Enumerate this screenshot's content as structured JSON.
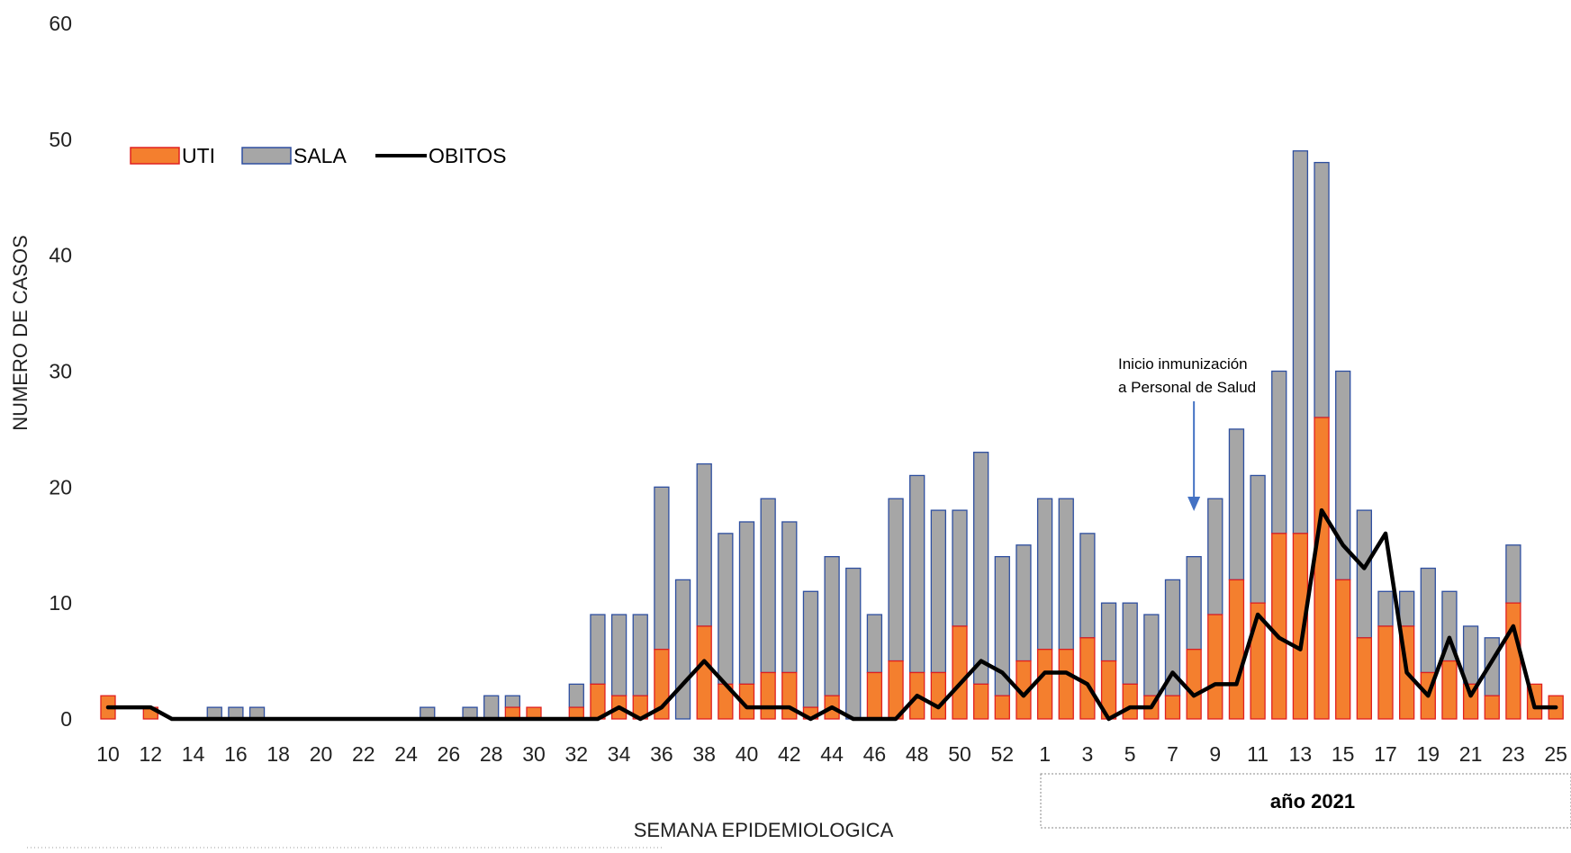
{
  "chart_data": {
    "type": "bar",
    "stacked": true,
    "ylabel": "NUMERO DE CASOS",
    "xlabel": "SEMANA EPIDEMIOLOGICA",
    "ylim": [
      0,
      60
    ],
    "y_ticks": [
      0,
      10,
      20,
      30,
      40,
      50,
      60
    ],
    "grid": false,
    "legend_position": "top-left",
    "year_box_label": "año 2021",
    "annotation": {
      "lines": [
        "Inicio inmunización",
        "a Personal de Salud"
      ],
      "target_week_index": 51
    },
    "weeks": [
      "10",
      "11",
      "12",
      "13",
      "14",
      "15",
      "16",
      "17",
      "18",
      "19",
      "20",
      "21",
      "22",
      "23",
      "24",
      "25",
      "26",
      "27",
      "28",
      "29",
      "30",
      "31",
      "32",
      "33",
      "34",
      "35",
      "36",
      "37",
      "38",
      "39",
      "40",
      "41",
      "42",
      "43",
      "44",
      "45",
      "46",
      "47",
      "48",
      "49",
      "50",
      "51",
      "52",
      "53",
      "1",
      "2",
      "3",
      "4",
      "5",
      "6",
      "7",
      "8",
      "9",
      "10",
      "11",
      "12",
      "13",
      "14",
      "15",
      "16",
      "17",
      "18",
      "19",
      "20",
      "21",
      "22",
      "23",
      "24",
      "25"
    ],
    "tick_labels": [
      "10",
      "12",
      "14",
      "16",
      "18",
      "20",
      "22",
      "24",
      "26",
      "28",
      "30",
      "32",
      "34",
      "36",
      "38",
      "40",
      "42",
      "44",
      "46",
      "48",
      "50",
      "52",
      "1",
      "3",
      "5",
      "7",
      "9",
      "11",
      "13",
      "15",
      "17",
      "19",
      "21",
      "23",
      "25"
    ],
    "tick_label_indices": [
      0,
      2,
      4,
      6,
      8,
      10,
      12,
      14,
      16,
      18,
      20,
      22,
      24,
      26,
      28,
      30,
      32,
      34,
      36,
      38,
      40,
      42,
      44,
      46,
      48,
      50,
      52,
      54,
      56,
      58,
      60,
      62,
      64,
      66,
      68
    ],
    "year_start_index": 44,
    "series": [
      {
        "name": "UTI",
        "kind": "bar",
        "color": "#F47F2E",
        "edge": "#E02020",
        "values": [
          2,
          0,
          1,
          0,
          0,
          0,
          0,
          0,
          0,
          0,
          0,
          0,
          0,
          0,
          0,
          0,
          0,
          0,
          0,
          1,
          1,
          0,
          1,
          3,
          2,
          2,
          6,
          0,
          8,
          3,
          3,
          4,
          4,
          1,
          2,
          0,
          4,
          5,
          4,
          4,
          8,
          3,
          2,
          5,
          6,
          6,
          7,
          5,
          3,
          2,
          2,
          6,
          9,
          12,
          10,
          16,
          16,
          26,
          12,
          7,
          8,
          8,
          4,
          5,
          3,
          2,
          10,
          3,
          2
        ]
      },
      {
        "name": "SALA",
        "kind": "bar",
        "color": "#A6A6A6",
        "edge": "#2E4FA0",
        "values": [
          0,
          0,
          0,
          0,
          0,
          1,
          1,
          1,
          0,
          0,
          0,
          0,
          0,
          0,
          0,
          1,
          0,
          1,
          2,
          1,
          0,
          0,
          2,
          6,
          7,
          7,
          14,
          12,
          14,
          13,
          14,
          15,
          13,
          10,
          12,
          13,
          5,
          14,
          17,
          14,
          10,
          20,
          12,
          10,
          13,
          13,
          9,
          5,
          7,
          7,
          10,
          8,
          10,
          13,
          11,
          14,
          33,
          22,
          18,
          11,
          3,
          3,
          9,
          6,
          5,
          5,
          5,
          0,
          0
        ]
      },
      {
        "name": "OBITOS",
        "kind": "line",
        "color": "#000000",
        "values": [
          1,
          1,
          1,
          0,
          0,
          0,
          0,
          0,
          0,
          0,
          0,
          0,
          0,
          0,
          0,
          0,
          0,
          0,
          0,
          0,
          0,
          0,
          0,
          0,
          1,
          0,
          1,
          3,
          5,
          3,
          1,
          1,
          1,
          0,
          1,
          0,
          0,
          0,
          2,
          1,
          3,
          5,
          4,
          2,
          4,
          4,
          3,
          0,
          1,
          1,
          4,
          2,
          3,
          3,
          9,
          7,
          6,
          18,
          15,
          13,
          16,
          4,
          2,
          7,
          2,
          5,
          8,
          1,
          1
        ]
      }
    ]
  }
}
